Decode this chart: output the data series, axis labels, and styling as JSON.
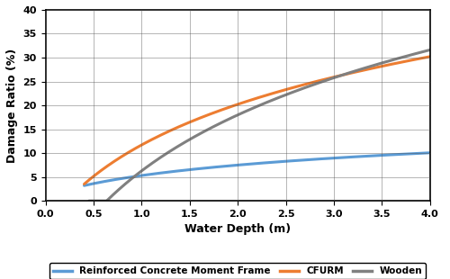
{
  "title": "",
  "xlabel": "Water Depth (m)",
  "ylabel": "Damage Ratio (%)",
  "xlim": [
    0,
    4
  ],
  "ylim": [
    0,
    40
  ],
  "xticks": [
    0,
    0.5,
    1.0,
    1.5,
    2.0,
    2.5,
    3.0,
    3.5,
    4.0
  ],
  "yticks": [
    0,
    5,
    10,
    15,
    20,
    25,
    30,
    35,
    40
  ],
  "series": [
    {
      "label": "Reinforced Concrete Moment Frame",
      "color": "#5B9BD5",
      "type": "log",
      "params": {
        "a": 3.2,
        "b": 4.5,
        "x0": 0.4
      }
    },
    {
      "label": "CFURM",
      "color": "#ED7D31",
      "type": "log",
      "params": {
        "a": 3.5,
        "b": 17.5,
        "x0": 0.4
      }
    },
    {
      "label": "Wooden",
      "color": "#808080",
      "type": "log",
      "params": {
        "a": -4.0,
        "b": 23.5,
        "x0": 0.45
      }
    }
  ],
  "linewidth": 2.2,
  "legend_fontsize": 7.5,
  "axis_label_fontsize": 9,
  "tick_fontsize": 8,
  "background_color": "#ffffff",
  "grid_color": "#555555",
  "grid_alpha": 0.5,
  "grid_linewidth": 0.6
}
